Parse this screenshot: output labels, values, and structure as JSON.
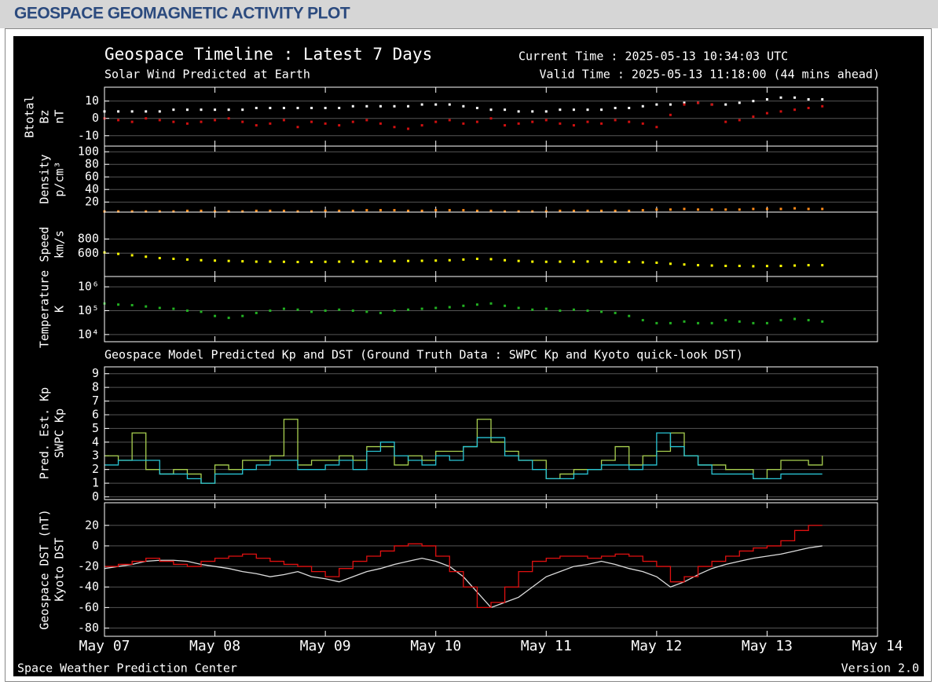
{
  "header": {
    "title": "GEOSPACE GEOMAGNETIC ACTIVITY PLOT"
  },
  "figure": {
    "title": "Geospace Timeline : Latest 7 Days",
    "subtitle": "Solar Wind Predicted at Earth",
    "current_time": "Current Time : 2025-05-13 10:34:03 UTC",
    "valid_time": "Valid Time : 2025-05-13 11:18:00 (44 mins ahead)",
    "footer_left": "Space Weather Prediction Center",
    "footer_right": "Version 2.0"
  },
  "chart_data": [
    {
      "type": "scatter",
      "ylabel": "nT",
      "xlim": [
        0,
        7
      ],
      "ylim": [
        -16,
        18
      ],
      "yticks": [
        -10,
        0,
        10
      ],
      "grid": true,
      "x": [
        0,
        0.125,
        0.25,
        0.375,
        0.5,
        0.625,
        0.75,
        0.875,
        1,
        1.125,
        1.25,
        1.375,
        1.5,
        1.625,
        1.75,
        1.875,
        2,
        2.125,
        2.25,
        2.375,
        2.5,
        2.625,
        2.75,
        2.875,
        3,
        3.125,
        3.25,
        3.375,
        3.5,
        3.625,
        3.75,
        3.875,
        4,
        4.125,
        4.25,
        4.375,
        4.5,
        4.625,
        4.75,
        4.875,
        5,
        5.125,
        5.25,
        5.375,
        5.5,
        5.625,
        5.75,
        5.875,
        6,
        6.125,
        6.25,
        6.375,
        6.5
      ],
      "series": [
        {
          "name": "Btotal",
          "color": "#ffffff",
          "values": [
            4,
            4,
            4,
            4,
            4,
            5,
            5,
            5,
            5,
            5,
            5,
            6,
            6,
            6,
            6,
            6,
            6,
            6,
            7,
            7,
            7,
            7,
            7,
            8,
            8,
            8,
            7,
            6,
            5,
            5,
            4,
            4,
            4,
            5,
            5,
            5,
            5,
            6,
            6,
            7,
            8,
            8,
            9,
            9,
            8,
            8,
            9,
            10,
            11,
            12,
            12,
            11,
            11
          ]
        },
        {
          "name": "Bz",
          "color": "#d01010",
          "values": [
            0,
            -1,
            -2,
            0,
            -1,
            -2,
            -3,
            -2,
            -1,
            0,
            -2,
            -4,
            -3,
            -1,
            -5,
            -2,
            -3,
            -4,
            -2,
            -1,
            -3,
            -5,
            -6,
            -4,
            -2,
            -1,
            -3,
            -2,
            0,
            -4,
            -3,
            -2,
            -1,
            -3,
            -4,
            -2,
            -3,
            -1,
            -2,
            -3,
            -5,
            2,
            8,
            9,
            8,
            -2,
            -1,
            1,
            3,
            4,
            5,
            6,
            7
          ]
        }
      ]
    },
    {
      "type": "scatter",
      "ylabel": "p/cm³",
      "xlim": [
        0,
        7
      ],
      "ylim": [
        4,
        109
      ],
      "yticks": [
        20,
        40,
        60,
        80,
        100
      ],
      "grid": true,
      "x": [
        0,
        0.125,
        0.25,
        0.375,
        0.5,
        0.625,
        0.75,
        0.875,
        1,
        1.125,
        1.25,
        1.375,
        1.5,
        1.625,
        1.75,
        1.875,
        2,
        2.125,
        2.25,
        2.375,
        2.5,
        2.625,
        2.75,
        2.875,
        3,
        3.125,
        3.25,
        3.375,
        3.5,
        3.625,
        3.75,
        3.875,
        4,
        4.125,
        4.25,
        4.375,
        4.5,
        4.625,
        4.75,
        4.875,
        5,
        5.125,
        5.25,
        5.375,
        5.5,
        5.625,
        5.75,
        5.875,
        6,
        6.125,
        6.25,
        6.375,
        6.5
      ],
      "series": [
        {
          "name": "Density",
          "color": "#ff8c1a",
          "values": [
            5,
            5,
            5,
            5,
            5,
            5,
            6,
            6,
            5,
            5,
            5,
            6,
            6,
            6,
            5,
            5,
            6,
            6,
            6,
            7,
            7,
            7,
            6,
            6,
            7,
            7,
            7,
            6,
            6,
            5,
            5,
            5,
            5,
            6,
            6,
            6,
            6,
            6,
            6,
            7,
            8,
            8,
            9,
            8,
            8,
            8,
            8,
            9,
            9,
            9,
            10,
            9,
            9
          ]
        }
      ]
    },
    {
      "type": "scatter",
      "ylabel": "km/s",
      "xlim": [
        0,
        7
      ],
      "ylim": [
        270,
        1180
      ],
      "yticks": [
        600,
        800
      ],
      "grid": true,
      "x": [
        0,
        0.125,
        0.25,
        0.375,
        0.5,
        0.625,
        0.75,
        0.875,
        1,
        1.125,
        1.25,
        1.375,
        1.5,
        1.625,
        1.75,
        1.875,
        2,
        2.125,
        2.25,
        2.375,
        2.5,
        2.625,
        2.75,
        2.875,
        3,
        3.125,
        3.25,
        3.375,
        3.5,
        3.625,
        3.75,
        3.875,
        4,
        4.125,
        4.25,
        4.375,
        4.5,
        4.625,
        4.75,
        4.875,
        5,
        5.125,
        5.25,
        5.375,
        5.5,
        5.625,
        5.75,
        5.875,
        6,
        6.125,
        6.25,
        6.375,
        6.5
      ],
      "series": [
        {
          "name": "Speed",
          "color": "#ffff00",
          "values": [
            610,
            590,
            570,
            550,
            530,
            520,
            510,
            500,
            495,
            490,
            485,
            480,
            480,
            478,
            475,
            475,
            478,
            480,
            480,
            482,
            485,
            488,
            490,
            492,
            495,
            500,
            510,
            520,
            515,
            500,
            490,
            480,
            478,
            480,
            480,
            482,
            480,
            478,
            475,
            470,
            465,
            450,
            440,
            430,
            425,
            420,
            420,
            415,
            418,
            420,
            425,
            430,
            430
          ]
        }
      ]
    },
    {
      "type": "scatter",
      "ylabel": "K",
      "log": true,
      "xlim": [
        0,
        7
      ],
      "ylim": [
        5000,
        2700000
      ],
      "yticks": [
        {
          "value": 10000,
          "label": "10⁴"
        },
        {
          "value": 100000,
          "label": "10⁵"
        },
        {
          "value": 1000000,
          "label": "10⁶"
        }
      ],
      "grid": true,
      "x": [
        0,
        0.125,
        0.25,
        0.375,
        0.5,
        0.625,
        0.75,
        0.875,
        1,
        1.125,
        1.25,
        1.375,
        1.5,
        1.625,
        1.75,
        1.875,
        2,
        2.125,
        2.25,
        2.375,
        2.5,
        2.625,
        2.75,
        2.875,
        3,
        3.125,
        3.25,
        3.375,
        3.5,
        3.625,
        3.75,
        3.875,
        4,
        4.125,
        4.25,
        4.375,
        4.5,
        4.625,
        4.75,
        4.875,
        5,
        5.125,
        5.25,
        5.375,
        5.5,
        5.625,
        5.75,
        5.875,
        6,
        6.125,
        6.25,
        6.375,
        6.5
      ],
      "series": [
        {
          "name": "Temperature",
          "color": "#22b022",
          "values": [
            200000,
            180000,
            170000,
            150000,
            130000,
            120000,
            100000,
            90000,
            60000,
            50000,
            60000,
            80000,
            100000,
            120000,
            110000,
            90000,
            100000,
            110000,
            100000,
            90000,
            80000,
            100000,
            110000,
            120000,
            130000,
            140000,
            160000,
            180000,
            200000,
            160000,
            130000,
            110000,
            120000,
            100000,
            110000,
            100000,
            90000,
            80000,
            60000,
            40000,
            30000,
            30000,
            35000,
            30000,
            30000,
            40000,
            35000,
            30000,
            30000,
            40000,
            45000,
            40000,
            35000
          ]
        }
      ]
    },
    {
      "type": "line",
      "title": "Geospace Model Predicted Kp and DST (Ground Truth Data : SWPC Kp and Kyoto quick-look DST)",
      "xlim": [
        0,
        7
      ],
      "ylim": [
        -0.2,
        9.5
      ],
      "yticks": [
        0,
        1,
        2,
        3,
        4,
        5,
        6,
        7,
        8,
        9
      ],
      "grid": true,
      "x": [
        0,
        0.125,
        0.25,
        0.375,
        0.5,
        0.625,
        0.75,
        0.875,
        1,
        1.125,
        1.25,
        1.375,
        1.5,
        1.625,
        1.75,
        1.875,
        2,
        2.125,
        2.25,
        2.375,
        2.5,
        2.625,
        2.75,
        2.875,
        3,
        3.125,
        3.25,
        3.375,
        3.5,
        3.625,
        3.75,
        3.875,
        4,
        4.125,
        4.25,
        4.375,
        4.5,
        4.625,
        4.75,
        4.875,
        5,
        5.125,
        5.25,
        5.375,
        5.5,
        5.625,
        5.75,
        5.875,
        6,
        6.125,
        6.25,
        6.375,
        6.5
      ],
      "series": [
        {
          "name": "Pred. Est. Kp",
          "color": "#a8d050",
          "step": true,
          "values": [
            3,
            2.67,
            4.67,
            2,
            1.67,
            2,
            1.67,
            1,
            2.33,
            2,
            2.67,
            2.67,
            3,
            5.67,
            2.33,
            2.67,
            2.67,
            3,
            2.67,
            3.67,
            3.67,
            2.33,
            3,
            2.67,
            3.33,
            3.33,
            3.67,
            5.67,
            4,
            3.33,
            2.67,
            2.67,
            1.33,
            1.67,
            2,
            2,
            2.67,
            3.67,
            2.33,
            3,
            3.33,
            4.67,
            3,
            2.33,
            2.33,
            2,
            2,
            1.33,
            2,
            2.67,
            2.67,
            2.33,
            3
          ]
        },
        {
          "name": "SWPC Kp",
          "color": "#29c4d4",
          "step": true,
          "values": [
            2.33,
            2.67,
            2.67,
            2.67,
            1.67,
            1.67,
            1.33,
            1,
            1.67,
            1.67,
            2,
            2.33,
            2.67,
            2.67,
            2,
            2,
            2.33,
            2.67,
            2,
            3.33,
            4,
            3,
            2.67,
            2.33,
            3,
            2.67,
            3.67,
            4.33,
            4.33,
            3,
            2.67,
            2,
            1.33,
            1.33,
            1.67,
            2,
            2.33,
            2.33,
            2,
            2.33,
            4.67,
            3.67,
            3,
            2.33,
            1.67,
            1.67,
            1.67,
            1.33,
            1.33,
            1.67,
            1.67,
            1.67,
            1.67
          ]
        }
      ]
    },
    {
      "type": "line",
      "xlim": [
        0,
        7
      ],
      "ylim": [
        -88,
        42
      ],
      "yticks": [
        -80,
        -60,
        -40,
        -20,
        0,
        20
      ],
      "grid": true,
      "xticks": [
        {
          "value": 0,
          "label": "May 07"
        },
        {
          "value": 1,
          "label": "May 08"
        },
        {
          "value": 2,
          "label": "May 09"
        },
        {
          "value": 3,
          "label": "May 10"
        },
        {
          "value": 4,
          "label": "May 11"
        },
        {
          "value": 5,
          "label": "May 12"
        },
        {
          "value": 6,
          "label": "May 13"
        },
        {
          "value": 7,
          "label": "May 14"
        }
      ],
      "x": [
        0,
        0.125,
        0.25,
        0.375,
        0.5,
        0.625,
        0.75,
        0.875,
        1,
        1.125,
        1.25,
        1.375,
        1.5,
        1.625,
        1.75,
        1.875,
        2,
        2.125,
        2.25,
        2.375,
        2.5,
        2.625,
        2.75,
        2.875,
        3,
        3.125,
        3.25,
        3.375,
        3.5,
        3.625,
        3.75,
        3.875,
        4,
        4.125,
        4.25,
        4.375,
        4.5,
        4.625,
        4.75,
        4.875,
        5,
        5.125,
        5.25,
        5.375,
        5.5,
        5.625,
        5.75,
        5.875,
        6,
        6.125,
        6.25,
        6.375,
        6.5
      ],
      "series": [
        {
          "name": "Geospace DST (nT)",
          "color": "#dddddd",
          "values": [
            -22,
            -20,
            -18,
            -15,
            -14,
            -14,
            -15,
            -18,
            -20,
            -22,
            -25,
            -27,
            -30,
            -28,
            -25,
            -30,
            -32,
            -35,
            -30,
            -25,
            -22,
            -18,
            -15,
            -12,
            -15,
            -20,
            -30,
            -45,
            -60,
            -55,
            -50,
            -40,
            -30,
            -25,
            -20,
            -18,
            -15,
            -18,
            -22,
            -25,
            -30,
            -40,
            -35,
            -28,
            -22,
            -18,
            -15,
            -12,
            -10,
            -8,
            -5,
            -2,
            0
          ]
        },
        {
          "name": "Kyoto DST",
          "color": "#e01010",
          "step": true,
          "values": [
            -20,
            -18,
            -15,
            -12,
            -15,
            -18,
            -20,
            -15,
            -12,
            -10,
            -8,
            -12,
            -15,
            -18,
            -20,
            -25,
            -30,
            -22,
            -15,
            -10,
            -5,
            0,
            2,
            0,
            -10,
            -25,
            -40,
            -60,
            -55,
            -40,
            -25,
            -15,
            -12,
            -10,
            -10,
            -12,
            -10,
            -8,
            -10,
            -15,
            -20,
            -35,
            -30,
            -20,
            -15,
            -10,
            -5,
            -2,
            0,
            5,
            15,
            20,
            20
          ]
        }
      ]
    }
  ]
}
